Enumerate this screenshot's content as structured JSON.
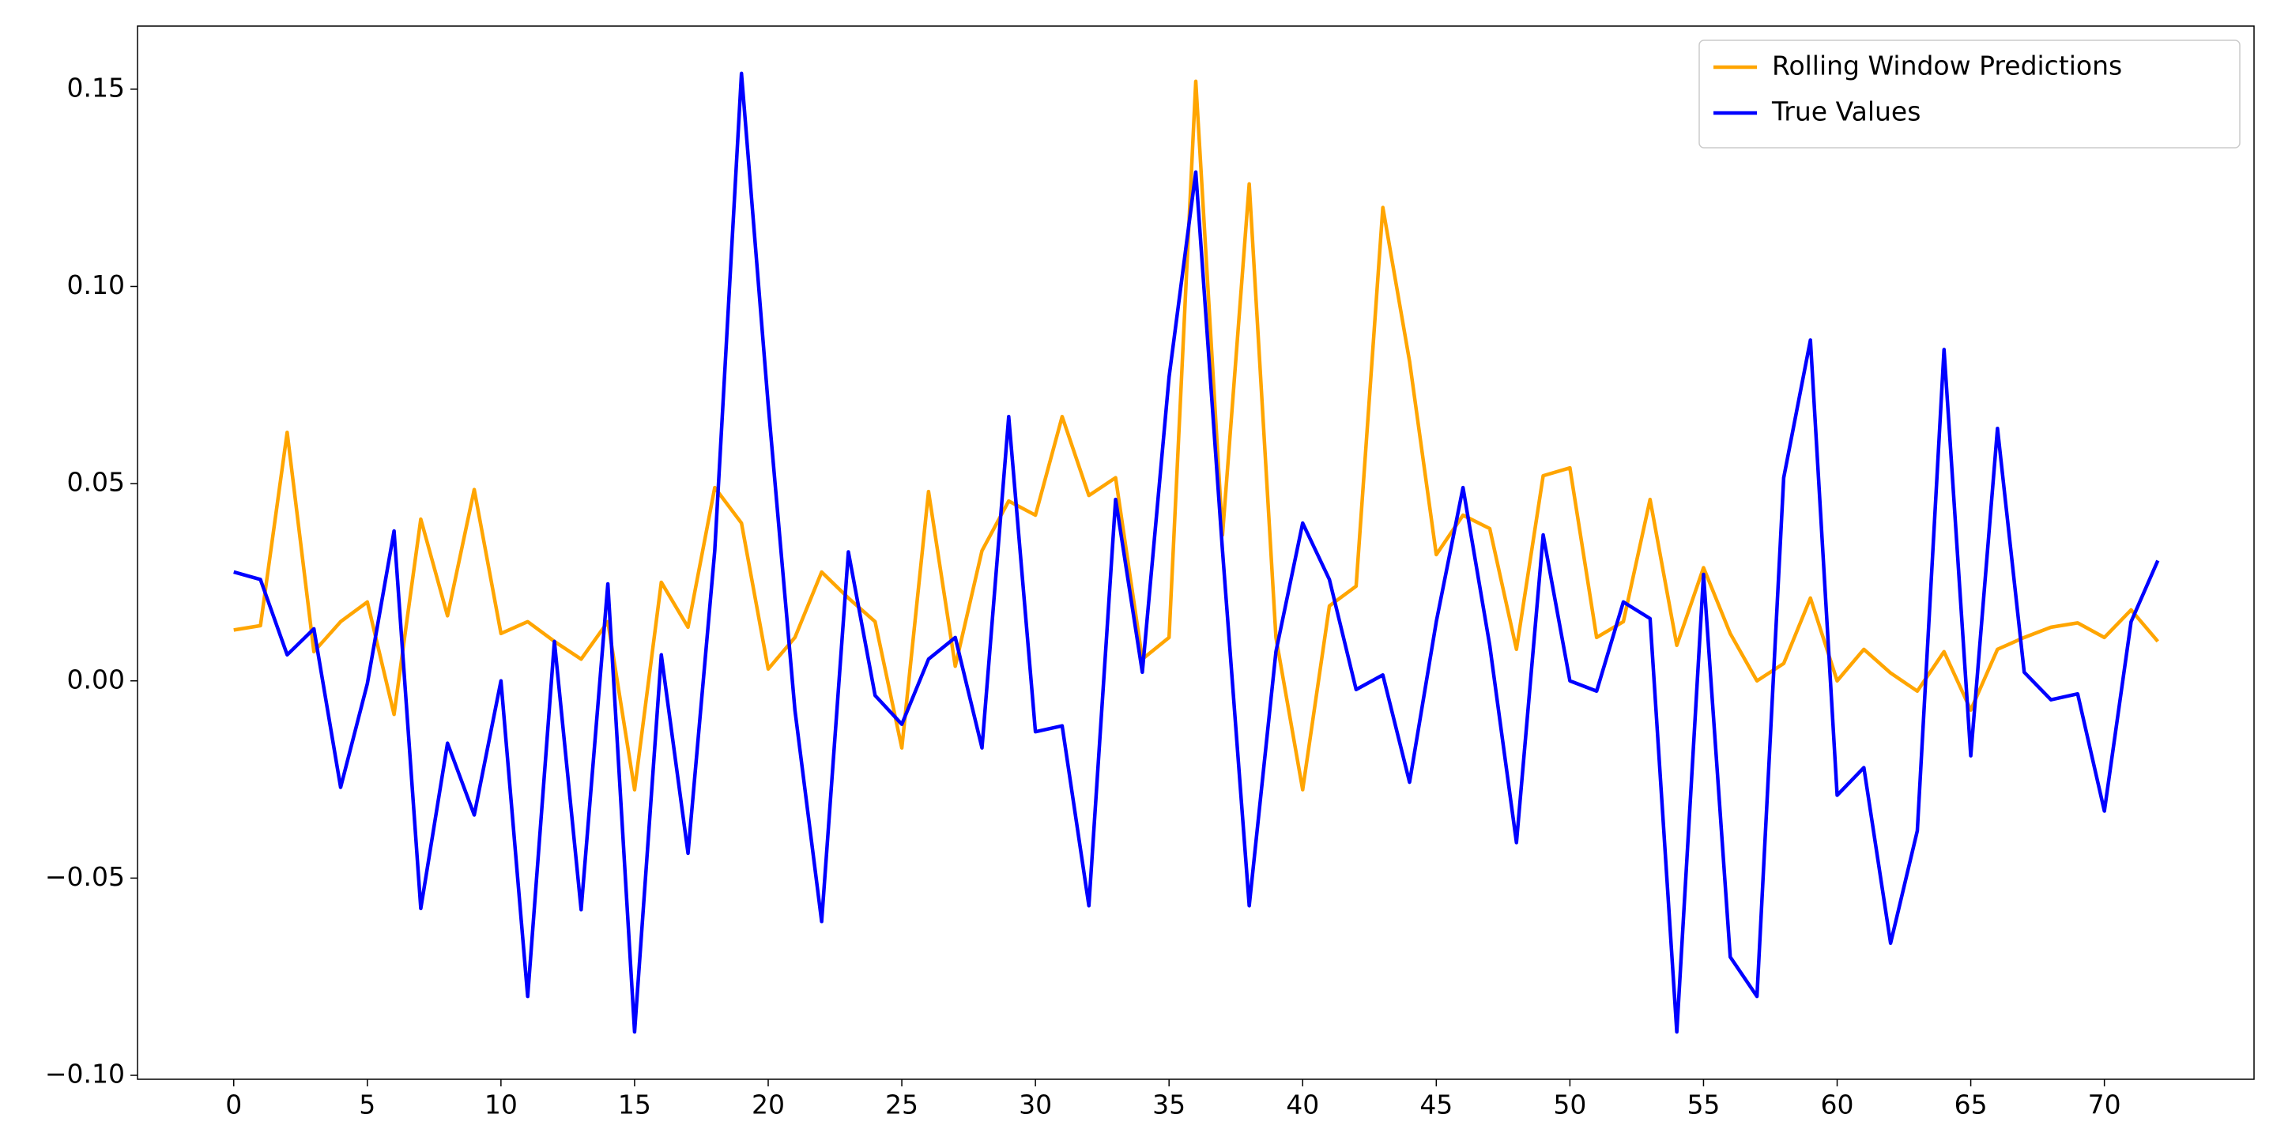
{
  "chart_data": {
    "type": "line",
    "x": [
      0,
      1,
      2,
      3,
      4,
      5,
      6,
      7,
      8,
      9,
      10,
      11,
      12,
      13,
      14,
      15,
      16,
      17,
      18,
      19,
      20,
      21,
      22,
      23,
      24,
      25,
      26,
      27,
      28,
      29,
      30,
      31,
      32,
      33,
      34,
      35,
      36,
      37,
      38,
      39,
      40,
      41,
      42,
      43,
      44,
      45,
      46,
      47,
      48,
      49,
      50,
      51,
      52,
      53,
      54,
      55,
      56,
      57,
      58,
      59,
      60,
      61,
      62,
      63,
      64,
      65,
      66,
      67,
      68,
      69,
      70,
      71,
      72
    ],
    "series": [
      {
        "name": "Rolling Window Predictions",
        "color": "#ffa500",
        "values": [
          0.0129,
          0.014,
          0.063,
          0.0074,
          0.015,
          0.02,
          -0.0085,
          0.041,
          0.0165,
          0.0485,
          0.012,
          0.015,
          0.01,
          0.0055,
          0.015,
          -0.0276,
          0.025,
          0.0136,
          0.049,
          0.04,
          0.003,
          0.011,
          0.0276,
          0.021,
          0.015,
          -0.017,
          0.048,
          0.0037,
          0.033,
          0.0456,
          0.042,
          0.067,
          0.047,
          0.0515,
          0.0055,
          0.011,
          0.152,
          0.037,
          0.126,
          0.011,
          -0.0276,
          0.019,
          0.024,
          0.12,
          0.081,
          0.032,
          0.042,
          0.0386,
          0.008,
          0.052,
          0.054,
          0.011,
          0.015,
          0.046,
          0.009,
          0.0287,
          0.012,
          0.0,
          0.0044,
          0.021,
          0.0,
          0.008,
          0.002,
          -0.0026,
          0.0074,
          -0.0074,
          0.008,
          0.011,
          0.0136,
          0.0147,
          0.011,
          0.018,
          0.01
        ]
      },
      {
        "name": "True Values",
        "color": "#0000ff",
        "values": [
          0.0276,
          0.0257,
          0.0066,
          0.0132,
          -0.027,
          -0.0007,
          0.038,
          -0.0577,
          -0.0158,
          -0.034,
          0.0,
          -0.08,
          0.01,
          -0.058,
          0.0246,
          -0.089,
          0.0066,
          -0.0437,
          0.033,
          0.154,
          0.07,
          -0.0074,
          -0.061,
          0.0327,
          -0.0037,
          -0.011,
          0.0055,
          0.011,
          -0.017,
          0.067,
          -0.0129,
          -0.0114,
          -0.057,
          0.046,
          0.0022,
          0.077,
          0.129,
          0.033,
          -0.057,
          0.0074,
          0.04,
          0.0257,
          -0.0022,
          0.0015,
          -0.0257,
          0.015,
          0.049,
          0.009,
          -0.041,
          0.037,
          0.0,
          -0.0026,
          0.02,
          0.0158,
          -0.089,
          0.027,
          -0.07,
          -0.08,
          0.0515,
          0.0864,
          -0.029,
          -0.022,
          -0.0665,
          -0.038,
          0.084,
          -0.019,
          0.064,
          0.0022,
          -0.0048,
          -0.0033,
          -0.033,
          0.015,
          0.0305
        ]
      }
    ],
    "xlim": [
      -3.6,
      75.6
    ],
    "xticks": [
      0,
      5,
      10,
      15,
      20,
      25,
      30,
      35,
      40,
      45,
      50,
      55,
      60,
      65,
      70
    ],
    "ylim": [
      -0.101,
      0.166
    ],
    "yticks": [
      {
        "value": -0.1,
        "label": "−0.10"
      },
      {
        "value": -0.05,
        "label": "−0.05"
      },
      {
        "value": 0,
        "label": "0.00"
      },
      {
        "value": 0.05,
        "label": "0.05"
      },
      {
        "value": 0.1,
        "label": "0.10"
      },
      {
        "value": 0.15,
        "label": "0.15"
      }
    ],
    "grid": false,
    "legend": "upper right"
  }
}
